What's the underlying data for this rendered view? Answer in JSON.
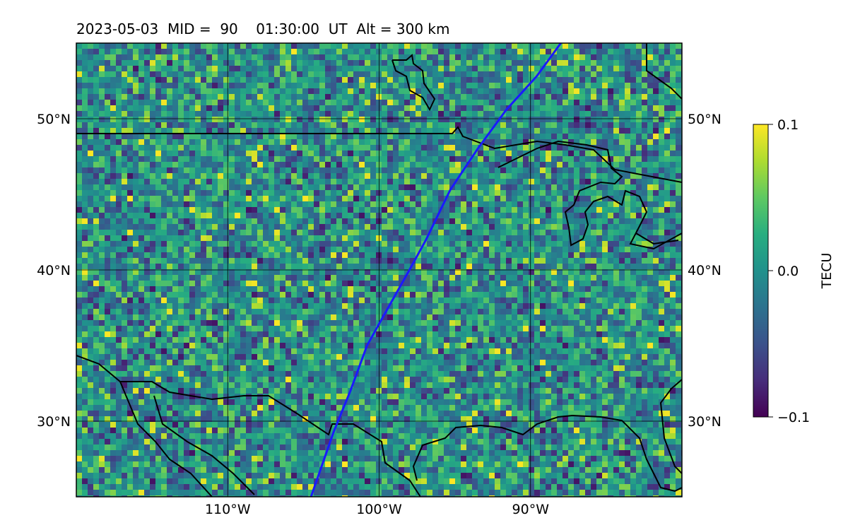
{
  "title": "2023-05-03  MID =  90    01:30:00  UT  Alt = 300 km",
  "map": {
    "lon_range": [
      -120,
      -80
    ],
    "lat_range": [
      25,
      55
    ],
    "lon_ticks": [
      {
        "value": -110,
        "label": "110°W"
      },
      {
        "value": -100,
        "label": "100°W"
      },
      {
        "value": -90,
        "label": "90°W"
      }
    ],
    "lat_ticks": [
      {
        "value": 50,
        "label": "50°N"
      },
      {
        "value": 40,
        "label": "40°N"
      },
      {
        "value": 30,
        "label": "30°N"
      }
    ],
    "grid": true,
    "track_color": "#1a1aff",
    "track": [
      [
        -104.5,
        25
      ],
      [
        -103.0,
        29.3
      ],
      [
        -101.9,
        32.0
      ],
      [
        -100.8,
        35.0
      ],
      [
        -99.8,
        36.8
      ],
      [
        -98.0,
        40.0
      ],
      [
        -96.9,
        42.0
      ],
      [
        -95.3,
        45.3
      ],
      [
        -93.5,
        48.0
      ],
      [
        -91.6,
        50.6
      ],
      [
        -89.6,
        52.8
      ],
      [
        -88.0,
        55
      ]
    ],
    "coast_color": "#000000"
  },
  "colorbar": {
    "label": "TECU",
    "min": -0.1,
    "max": 0.1,
    "ticks": [
      {
        "value": 0.1,
        "label": "0.1"
      },
      {
        "value": 0.0,
        "label": "0.0"
      },
      {
        "value": -0.1,
        "label": "−0.1"
      }
    ],
    "colormap": "viridis"
  }
}
